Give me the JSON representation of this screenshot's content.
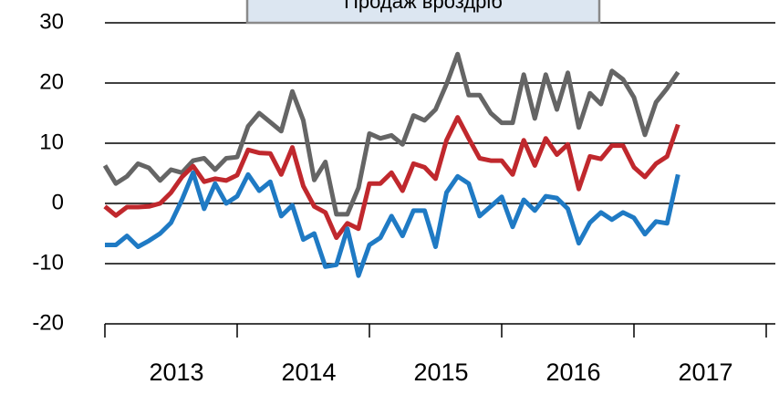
{
  "chart_data": {
    "type": "line",
    "annotation": "Продаж вроздріб",
    "x": [
      2013,
      2013.083,
      2013.167,
      2013.25,
      2013.333,
      2013.417,
      2013.5,
      2013.583,
      2013.667,
      2013.75,
      2013.833,
      2013.917,
      2014,
      2014.083,
      2014.167,
      2014.25,
      2014.333,
      2014.417,
      2014.5,
      2014.583,
      2014.667,
      2014.75,
      2014.833,
      2014.917,
      2015,
      2015.083,
      2015.167,
      2015.25,
      2015.333,
      2015.417,
      2015.5,
      2015.583,
      2015.667,
      2015.75,
      2015.833,
      2015.917,
      2016,
      2016.083,
      2016.167,
      2016.25,
      2016.333,
      2016.417,
      2016.5,
      2016.583,
      2016.667,
      2016.75,
      2016.833,
      2016.917,
      2017,
      2017.083,
      2017.167,
      2017.25,
      2017.333
    ],
    "series": [
      {
        "color": "#656565",
        "values": [
          6.3,
          3.3,
          4.5,
          6.6,
          5.9,
          3.8,
          5.6,
          5.1,
          7.1,
          7.5,
          5.6,
          7.5,
          7.7,
          12.8,
          15,
          13.5,
          12,
          18.6,
          13.8,
          3.9,
          6.9,
          -1.8,
          -1.8,
          2.6,
          11.6,
          10.8,
          11.3,
          9.8,
          14.6,
          13.8,
          15.6,
          19.8,
          24.8,
          18,
          18,
          15,
          13.4,
          13.4,
          21.4,
          14.1,
          21.4,
          15.6,
          21.7,
          12.6,
          18.3,
          16.5,
          22,
          20.6,
          17.6,
          11.4,
          16.8,
          19.1,
          21.8
        ]
      },
      {
        "color": "#c0282d",
        "values": [
          -0.5,
          -2,
          -0.6,
          -0.6,
          -0.5,
          0,
          1.8,
          4.4,
          6.2,
          3.6,
          4.1,
          3.8,
          4.7,
          8.9,
          8.4,
          8.3,
          4.8,
          9.3,
          2.9,
          -0.5,
          -1.5,
          -5.7,
          -3.3,
          -4.2,
          3.3,
          3.3,
          5.1,
          2.1,
          6.6,
          6,
          4.1,
          10.5,
          14.3,
          10.8,
          7.5,
          7.1,
          7.1,
          4.8,
          10.5,
          6.3,
          10.8,
          8.1,
          9.8,
          2.4,
          7.8,
          7.4,
          9.6,
          9.6,
          6,
          4.4,
          6.6,
          7.8,
          13.1
        ]
      },
      {
        "color": "#1f7ac4",
        "values": [
          -6.9,
          -6.9,
          -5.4,
          -7.2,
          -6.2,
          -5,
          -3.2,
          0.6,
          5.1,
          -0.9,
          3.3,
          0,
          1.2,
          4.8,
          2.1,
          3.6,
          -2.1,
          -0.3,
          -6,
          -5,
          -10.5,
          -10.2,
          -4.2,
          -12,
          -6.9,
          -5.7,
          -2.1,
          -5.4,
          -1.2,
          -1.2,
          -7.2,
          1.8,
          4.5,
          3.3,
          -2.1,
          -0.5,
          1.1,
          -3.9,
          0.6,
          -1.2,
          1.2,
          0.9,
          -0.9,
          -6.6,
          -3.2,
          -1.5,
          -2.7,
          -1.5,
          -2.4,
          -5.1,
          -3,
          -3.3,
          4.8
        ]
      }
    ],
    "xlim": [
      2013,
      2018
    ],
    "xticks": [
      2013,
      2014,
      2015,
      2016,
      2017,
      2018
    ],
    "year_labels": [
      "2013",
      "2014",
      "2015",
      "2016",
      "2017"
    ],
    "ylim": [
      -20,
      30
    ],
    "yticks": [
      -20,
      -10,
      0,
      10,
      20,
      30
    ],
    "grid": true
  }
}
